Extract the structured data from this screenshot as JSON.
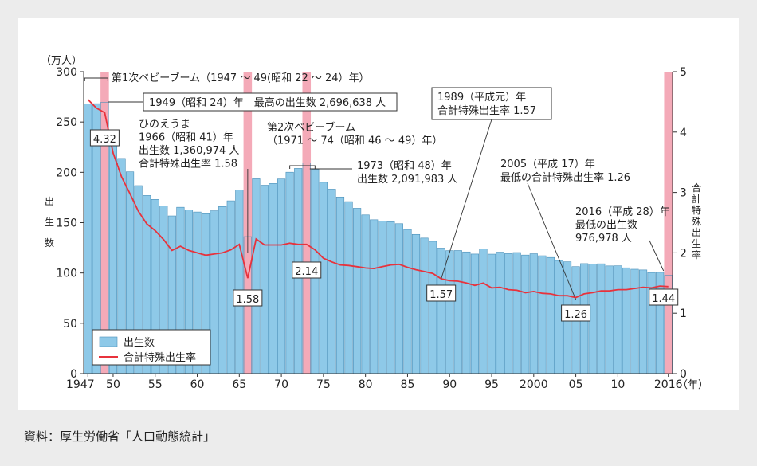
{
  "chart_data": {
    "type": "bar",
    "years": [
      1947,
      1948,
      1949,
      1950,
      1951,
      1952,
      1953,
      1954,
      1955,
      1956,
      1957,
      1958,
      1959,
      1960,
      1961,
      1962,
      1963,
      1964,
      1965,
      1966,
      1967,
      1968,
      1969,
      1970,
      1971,
      1972,
      1973,
      1974,
      1975,
      1976,
      1977,
      1978,
      1979,
      1980,
      1981,
      1982,
      1983,
      1984,
      1985,
      1986,
      1987,
      1988,
      1989,
      1990,
      1991,
      1992,
      1993,
      1994,
      1995,
      1996,
      1997,
      1998,
      1999,
      2000,
      2001,
      2002,
      2003,
      2004,
      2005,
      2006,
      2007,
      2008,
      2009,
      2010,
      2011,
      2012,
      2013,
      2014,
      2015,
      2016
    ],
    "x_tick_labels": [
      {
        "year": 1947,
        "label": "1947"
      },
      {
        "year": 1950,
        "label": "50"
      },
      {
        "year": 1955,
        "label": "55"
      },
      {
        "year": 1960,
        "label": "60"
      },
      {
        "year": 1965,
        "label": "65"
      },
      {
        "year": 1970,
        "label": "70"
      },
      {
        "year": 1975,
        "label": "75"
      },
      {
        "year": 1980,
        "label": "80"
      },
      {
        "year": 1985,
        "label": "85"
      },
      {
        "year": 1990,
        "label": "90"
      },
      {
        "year": 1995,
        "label": "95"
      },
      {
        "year": 2000,
        "label": "2000"
      },
      {
        "year": 2005,
        "label": "05"
      },
      {
        "year": 2010,
        "label": "10"
      },
      {
        "year": 2016,
        "label": "2016"
      }
    ],
    "x_unit": "（年）",
    "series": [
      {
        "name": "出生数",
        "axis": "left",
        "values": [
          267.9,
          268.2,
          269.7,
          233.8,
          213.8,
          200.5,
          186.8,
          177.0,
          173.1,
          166.5,
          156.7,
          165.3,
          162.6,
          160.6,
          158.9,
          161.8,
          166.0,
          171.7,
          182.4,
          136.1,
          193.6,
          187.2,
          188.9,
          193.4,
          200.1,
          203.9,
          209.2,
          203.0,
          190.1,
          183.3,
          175.5,
          170.9,
          164.3,
          157.7,
          152.9,
          151.5,
          150.9,
          149.0,
          143.2,
          138.3,
          134.7,
          131.4,
          124.7,
          122.2,
          122.3,
          120.9,
          118.8,
          123.8,
          118.7,
          120.7,
          119.2,
          120.3,
          117.8,
          119.1,
          117.1,
          115.4,
          112.4,
          111.1,
          106.3,
          109.3,
          109.0,
          109.1,
          107.0,
          107.1,
          105.1,
          103.7,
          103.0,
          100.4,
          100.6,
          97.7
        ]
      },
      {
        "name": "合計特殊出生率",
        "axis": "right",
        "values": [
          4.54,
          4.4,
          4.32,
          3.65,
          3.26,
          2.98,
          2.69,
          2.48,
          2.37,
          2.22,
          2.04,
          2.11,
          2.04,
          2.0,
          1.96,
          1.98,
          2.0,
          2.05,
          2.14,
          1.58,
          2.23,
          2.13,
          2.13,
          2.13,
          2.16,
          2.14,
          2.14,
          2.05,
          1.91,
          1.85,
          1.8,
          1.79,
          1.77,
          1.75,
          1.74,
          1.77,
          1.8,
          1.81,
          1.76,
          1.72,
          1.69,
          1.66,
          1.57,
          1.54,
          1.53,
          1.5,
          1.46,
          1.5,
          1.42,
          1.43,
          1.39,
          1.38,
          1.34,
          1.36,
          1.33,
          1.32,
          1.29,
          1.29,
          1.26,
          1.32,
          1.34,
          1.37,
          1.37,
          1.39,
          1.39,
          1.41,
          1.43,
          1.42,
          1.45,
          1.44
        ]
      }
    ],
    "highlight_years": [
      1949,
      1966,
      1973,
      2016
    ],
    "left_axis": {
      "unit": "（万人）",
      "label": "出生数",
      "ylim": [
        0,
        300
      ],
      "ticks": [
        "0",
        "50",
        "100",
        "150",
        "200",
        "250",
        "300"
      ]
    },
    "right_axis": {
      "label": "合計特殊出生率",
      "ylim": [
        0,
        5
      ],
      "ticks": [
        "0",
        "1",
        "2",
        "3",
        "4",
        "5"
      ]
    },
    "legend": {
      "position": "bottom-left",
      "items": [
        "出生数",
        "合計特殊出生率"
      ]
    },
    "value_labels": [
      {
        "year": 1949,
        "text": "4.32"
      },
      {
        "year": 1966,
        "text": "1.58"
      },
      {
        "year": 1973,
        "text": "2.14"
      },
      {
        "year": 1989,
        "text": "1.57"
      },
      {
        "year": 2005,
        "text": "1.26"
      },
      {
        "year": 2016,
        "text": "1.44"
      }
    ],
    "annotations": {
      "boom1": "第1次ベビーブーム（1947 ～ 49(昭和 22 ～ 24）年）",
      "y1949": "1949（昭和 24）年　最高の出生数 2,696,638 人",
      "hinoeuma": [
        "ひのえうま",
        "1966（昭和 41）年",
        "出生数 1,360,974 人",
        "合計特殊出生率 1.58"
      ],
      "boom2": [
        "第2次ベビーブーム",
        "（1971 ～ 74（昭和 46 ～ 49）年）"
      ],
      "y1973": [
        "1973（昭和 48）年",
        "出生数 2,091,983 人"
      ],
      "y1989": [
        "1989（平成元）年",
        "合計特殊出生率 1.57"
      ],
      "y2005": [
        "2005（平成 17）年",
        "最低の合計特殊出生率 1.26"
      ],
      "y2016": [
        "2016（平成 28）年",
        "最低の出生数",
        "976,978 人"
      ]
    },
    "colors": {
      "bar": "#8ec9e8",
      "bar_stroke": "#4a8fb8",
      "highlight_bar": "#f4aab8",
      "line": "#e8323c"
    }
  },
  "source": "資料：厚生労働省「人口動態統計」"
}
